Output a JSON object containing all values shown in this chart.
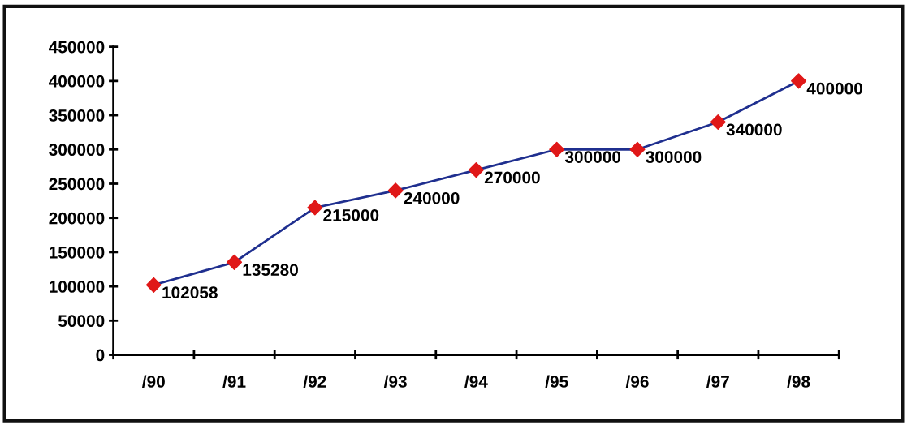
{
  "chart_data": {
    "type": "line",
    "categories": [
      "/90",
      "/91",
      "/92",
      "/93",
      "/94",
      "/95",
      "/96",
      "/97",
      "/98"
    ],
    "series": [
      {
        "color": "#1f2f8f",
        "colors": [
          "#e01818",
          "#e01818",
          "#e01818",
          "#e01818",
          "#e01818",
          "#e01818",
          "#e01818",
          "#e01818",
          "#e01818"
        ],
        "values": [
          102058,
          135280,
          215000,
          240000,
          270000,
          300000,
          300000,
          340000,
          400000
        ]
      }
    ],
    "marker": "diamond",
    "line_style": "solid",
    "ylim": [
      0,
      450000
    ],
    "yticks": [
      0,
      50000,
      100000,
      150000,
      200000,
      250000,
      300000,
      350000,
      400000,
      450000
    ],
    "data_labels": true,
    "grid": false,
    "legend": false
  }
}
